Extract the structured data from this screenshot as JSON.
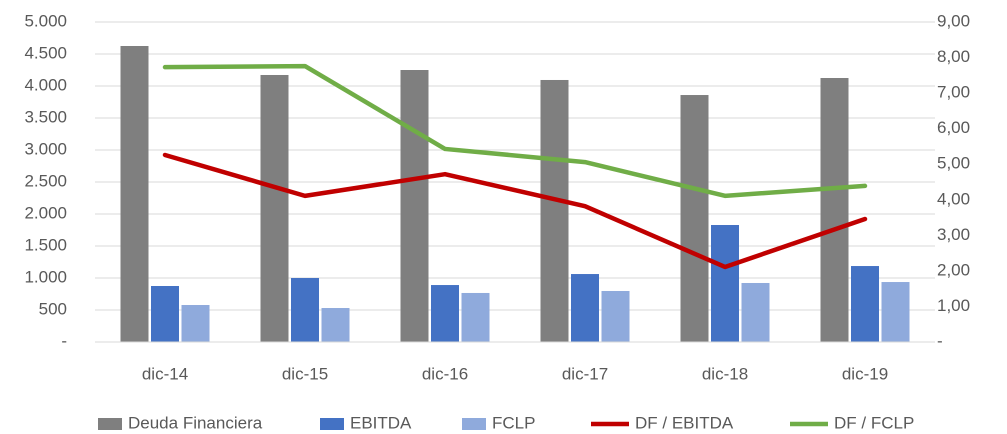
{
  "chart_data": {
    "type": "combo",
    "categories": [
      "dic-14",
      "dic-15",
      "dic-16",
      "dic-17",
      "dic-18",
      "dic-19"
    ],
    "series": [
      {
        "name": "Deuda Financiera",
        "type": "bar",
        "color": "#7f7f7f",
        "values": [
          4625,
          4172,
          4250,
          4094,
          3859,
          4125
        ]
      },
      {
        "name": "EBITDA",
        "type": "bar",
        "color": "#4472c4",
        "values": [
          875,
          1000,
          890,
          1062,
          1828,
          1187
        ]
      },
      {
        "name": "FCLP",
        "type": "bar",
        "color": "#8faadc",
        "values": [
          578,
          531,
          766,
          797,
          922,
          937
        ]
      },
      {
        "name": "DF / EBITDA",
        "type": "line",
        "axis": "y2",
        "color": "#c00000",
        "values": [
          5.26,
          4.11,
          4.72,
          3.82,
          2.11,
          3.46
        ]
      },
      {
        "name": "DF / FCLP",
        "type": "line",
        "axis": "y2",
        "color": "#70ad47",
        "values": [
          7.73,
          7.76,
          5.43,
          5.06,
          4.11,
          4.39
        ]
      }
    ],
    "ylim": [
      0,
      5000
    ],
    "yticks": [
      {
        "value": 0,
        "label": "-"
      },
      500,
      {
        "value": 1000,
        "label": "1.000"
      },
      {
        "value": 1500,
        "label": "1.500"
      },
      {
        "value": 2000,
        "label": "2.000"
      },
      {
        "value": 2500,
        "label": "2.500"
      },
      {
        "value": 3000,
        "label": "3.000"
      },
      {
        "value": 3500,
        "label": "3.500"
      },
      {
        "value": 4000,
        "label": "4.000"
      },
      {
        "value": 4500,
        "label": "4.500"
      },
      {
        "value": 5000,
        "label": "5.000"
      }
    ],
    "y2lim": [
      0,
      9
    ],
    "y2ticks": [
      {
        "value": 0,
        "label": "-"
      },
      {
        "value": 1,
        "label": "1,00"
      },
      {
        "value": 2,
        "label": "2,00"
      },
      {
        "value": 3,
        "label": "3,00"
      },
      {
        "value": 4,
        "label": "4,00"
      },
      {
        "value": 5,
        "label": "5,00"
      },
      {
        "value": 6,
        "label": "6,00"
      },
      {
        "value": 7,
        "label": "7,00"
      },
      {
        "value": 8,
        "label": "8,00"
      },
      {
        "value": 9,
        "label": "9,00"
      }
    ],
    "grid": true,
    "legend": "bottom"
  }
}
